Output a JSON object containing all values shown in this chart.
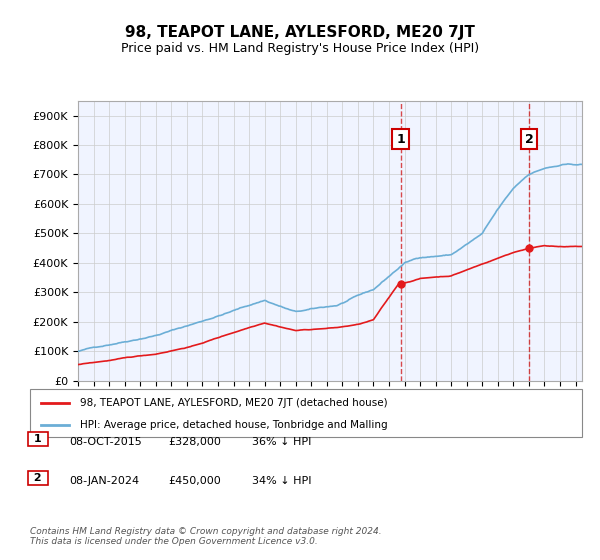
{
  "title": "98, TEAPOT LANE, AYLESFORD, ME20 7JT",
  "subtitle": "Price paid vs. HM Land Registry's House Price Index (HPI)",
  "ylabel": "",
  "ylim": [
    0,
    950000
  ],
  "yticks": [
    0,
    100000,
    200000,
    300000,
    400000,
    500000,
    600000,
    700000,
    800000,
    900000
  ],
  "ytick_labels": [
    "£0",
    "£100K",
    "£200K",
    "£300K",
    "£400K",
    "£500K",
    "£600K",
    "£700K",
    "£800K",
    "£900K"
  ],
  "hpi_color": "#6baed6",
  "price_color": "#e31a1c",
  "marker1_date_idx": 247,
  "marker2_date_idx": 344,
  "marker1_price": 328000,
  "marker2_price": 450000,
  "legend_label1": "98, TEAPOT LANE, AYLESFORD, ME20 7JT (detached house)",
  "legend_label2": "HPI: Average price, detached house, Tonbridge and Malling",
  "annotation1_label": "1",
  "annotation2_label": "2",
  "info1": "08-OCT-2015     £328,000     36% ↓ HPI",
  "info2": "08-JAN-2024     £450,000     34% ↓ HPI",
  "footnote": "Contains HM Land Registry data © Crown copyright and database right 2024.\nThis data is licensed under the Open Government Licence v3.0.",
  "background_color": "#f0f4ff",
  "plot_background": "#f0f4ff",
  "grid_color": "#cccccc",
  "title_fontsize": 11,
  "subtitle_fontsize": 9,
  "tick_fontsize": 8
}
